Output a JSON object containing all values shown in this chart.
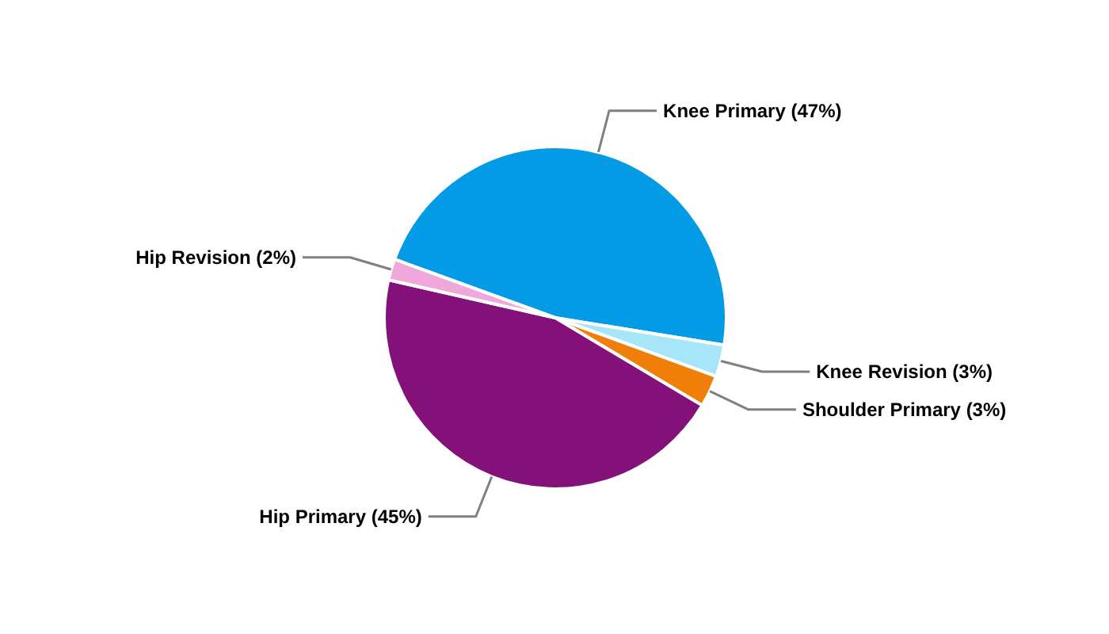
{
  "chart_data": {
    "type": "pie",
    "categories": [
      "Knee Primary",
      "Knee Revision",
      "Shoulder Primary",
      "Hip Primary",
      "Hip Revision"
    ],
    "values": [
      47,
      3,
      3,
      45,
      2
    ],
    "colors": [
      "#039be5",
      "#a6e6f8",
      "#f07f09",
      "#84117a",
      "#f0a8dc"
    ],
    "value_labels": [
      "(47%)",
      "(3%)",
      "(3%)",
      "(45%)",
      "(2%)"
    ]
  }
}
